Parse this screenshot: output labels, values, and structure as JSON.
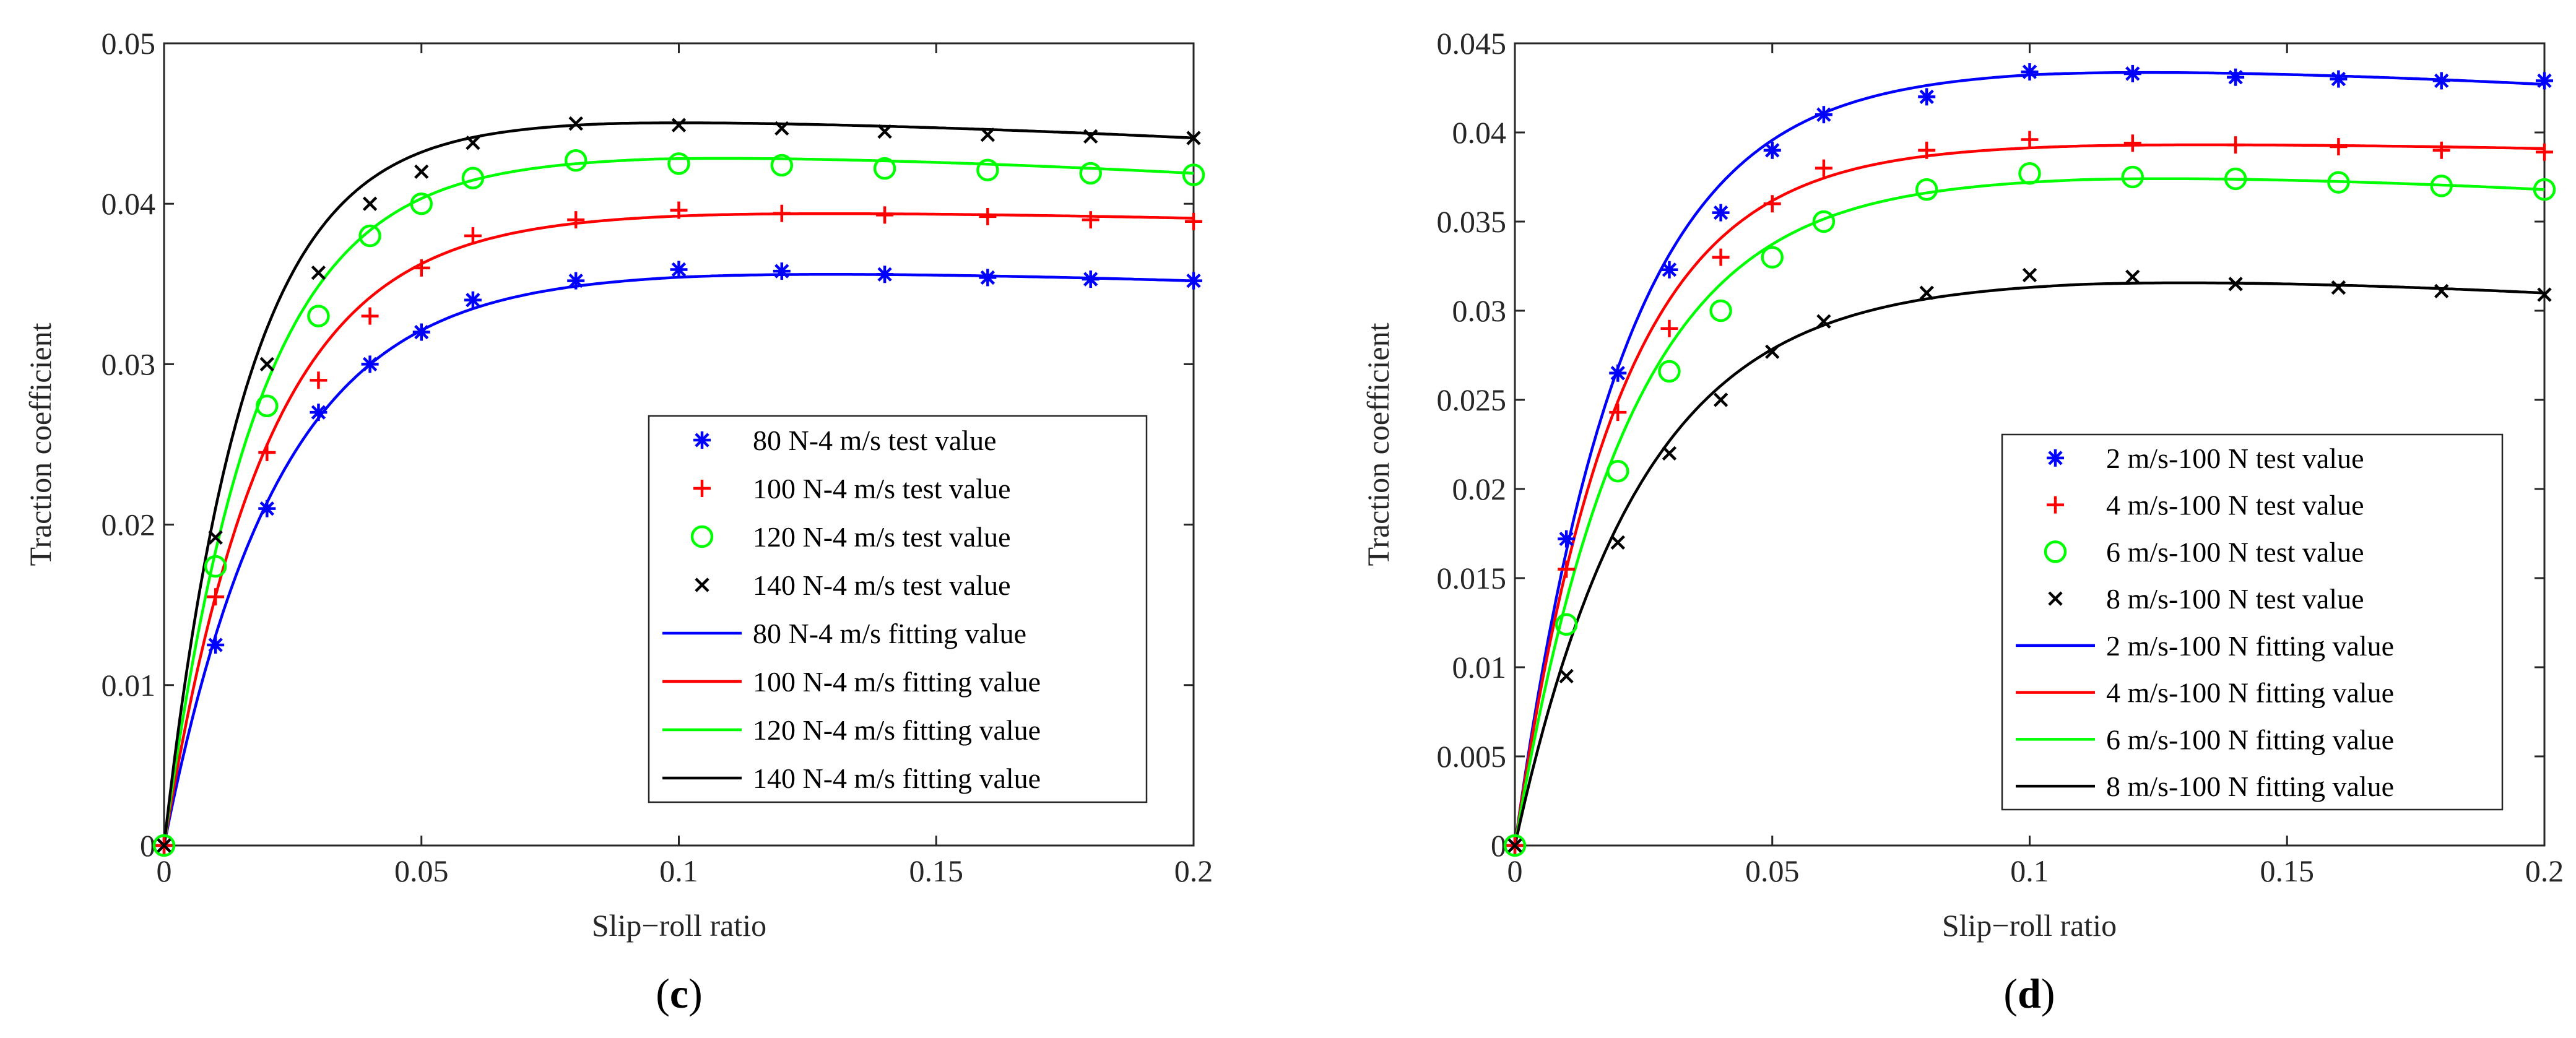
{
  "chart_data": [
    {
      "type": "line",
      "panel_label": "c",
      "xlabel": "Slip−roll ratio",
      "ylabel": "Traction coefficient",
      "xlim": [
        0,
        0.2
      ],
      "ylim": [
        0,
        0.05
      ],
      "xticks": [
        0,
        0.05,
        0.1,
        0.15,
        0.2
      ],
      "xtick_labels": [
        "0",
        "0.05",
        "0.1",
        "0.15",
        "0.2"
      ],
      "yticks": [
        0,
        0.01,
        0.02,
        0.03,
        0.04,
        0.05
      ],
      "ytick_labels": [
        "0",
        "0.01",
        "0.02",
        "0.03",
        "0.04",
        "0.05"
      ],
      "legend_position": "center-right",
      "x_test": [
        0,
        0.01,
        0.02,
        0.03,
        0.04,
        0.05,
        0.06,
        0.08,
        0.1,
        0.12,
        0.14,
        0.16,
        0.18,
        0.2
      ],
      "test_series": [
        {
          "name": "80 N-4 m/s test value",
          "marker": "asterisk",
          "color": "#0000ff",
          "values": [
            0,
            0.0125,
            0.021,
            0.027,
            0.03,
            0.032,
            0.034,
            0.0352,
            0.0359,
            0.0358,
            0.0356,
            0.0354,
            0.0353,
            0.0352
          ]
        },
        {
          "name": "100 N-4 m/s test value",
          "marker": "plus",
          "color": "#ff0000",
          "values": [
            0,
            0.0155,
            0.0245,
            0.029,
            0.033,
            0.036,
            0.038,
            0.039,
            0.0396,
            0.0394,
            0.0393,
            0.0392,
            0.039,
            0.0389
          ]
        },
        {
          "name": "120 N-4 m/s test value",
          "marker": "circle",
          "color": "#00ff00",
          "values": [
            0,
            0.0174,
            0.0274,
            0.033,
            0.038,
            0.04,
            0.0416,
            0.0427,
            0.0425,
            0.0424,
            0.0422,
            0.0421,
            0.0419,
            0.0418
          ]
        },
        {
          "name": "140 N-4 m/s test value",
          "marker": "x",
          "color": "#000000",
          "values": [
            0,
            0.0192,
            0.03,
            0.0357,
            0.04,
            0.042,
            0.0438,
            0.045,
            0.0449,
            0.0447,
            0.0445,
            0.0443,
            0.0442,
            0.0441
          ]
        }
      ],
      "fit_series": [
        {
          "name": "80 N-4 m/s fitting value",
          "color": "#0000ff",
          "peak": 0.0358,
          "end": 0.0352,
          "tau": 0.022,
          "x_peak": 0.1
        },
        {
          "name": "100 N-4 m/s fitting value",
          "color": "#ff0000",
          "peak": 0.0395,
          "end": 0.0391,
          "tau": 0.02,
          "x_peak": 0.105
        },
        {
          "name": "120 N-4 m/s fitting value",
          "color": "#00ff00",
          "peak": 0.043,
          "end": 0.0419,
          "tau": 0.018,
          "x_peak": 0.095
        },
        {
          "name": "140 N-4 m/s fitting value",
          "color": "#000000",
          "peak": 0.0452,
          "end": 0.0441,
          "tau": 0.016,
          "x_peak": 0.085
        }
      ]
    },
    {
      "type": "line",
      "panel_label": "d",
      "xlabel": "Slip−roll ratio",
      "ylabel": "Traction coefficient",
      "xlim": [
        0,
        0.2
      ],
      "ylim": [
        0,
        0.045
      ],
      "xticks": [
        0,
        0.05,
        0.1,
        0.15,
        0.2
      ],
      "xtick_labels": [
        "0",
        "0.05",
        "0.1",
        "0.15",
        "0.2"
      ],
      "yticks": [
        0,
        0.005,
        0.01,
        0.015,
        0.02,
        0.025,
        0.03,
        0.035,
        0.04,
        0.045
      ],
      "ytick_labels": [
        "0",
        "0.005",
        "0.01",
        "0.015",
        "0.02",
        "0.025",
        "0.03",
        "0.035",
        "0.04",
        "0.045"
      ],
      "legend_position": "center-right",
      "x_test": [
        0,
        0.01,
        0.02,
        0.03,
        0.04,
        0.05,
        0.06,
        0.08,
        0.1,
        0.12,
        0.14,
        0.16,
        0.18,
        0.2
      ],
      "test_series": [
        {
          "name": "2 m/s-100 N test value",
          "marker": "asterisk",
          "color": "#0000ff",
          "values": [
            0,
            0.0172,
            0.0265,
            0.0323,
            0.0355,
            0.039,
            0.041,
            0.042,
            0.0434,
            0.0433,
            0.0431,
            0.043,
            0.0429,
            0.0429
          ]
        },
        {
          "name": "4 m/s-100 N test value",
          "marker": "plus",
          "color": "#ff0000",
          "values": [
            0,
            0.0155,
            0.0243,
            0.029,
            0.033,
            0.036,
            0.038,
            0.039,
            0.0396,
            0.0394,
            0.0393,
            0.0392,
            0.039,
            0.0389
          ]
        },
        {
          "name": "6 m/s-100 N test value",
          "marker": "circle",
          "color": "#00ff00",
          "values": [
            0,
            0.0124,
            0.021,
            0.0266,
            0.03,
            0.033,
            0.035,
            0.0368,
            0.0377,
            0.0375,
            0.0374,
            0.0372,
            0.037,
            0.0368
          ]
        },
        {
          "name": "8 m/s-100 N test value",
          "marker": "x",
          "color": "#000000",
          "values": [
            0,
            0.0095,
            0.017,
            0.022,
            0.025,
            0.0277,
            0.0294,
            0.031,
            0.032,
            0.0319,
            0.0315,
            0.0313,
            0.0311,
            0.0309
          ]
        }
      ],
      "fit_series": [
        {
          "name": "2 m/s-100 N fitting value",
          "color": "#0000ff",
          "peak": 0.0436,
          "end": 0.0427,
          "tau": 0.021,
          "x_peak": 0.1
        },
        {
          "name": "4 m/s-100 N fitting value",
          "color": "#ff0000",
          "peak": 0.0394,
          "end": 0.0391,
          "tau": 0.02,
          "x_peak": 0.11
        },
        {
          "name": "6 m/s-100 N fitting value",
          "color": "#00ff00",
          "peak": 0.0376,
          "end": 0.0368,
          "tau": 0.022,
          "x_peak": 0.11
        },
        {
          "name": "8 m/s-100 N fitting value",
          "color": "#000000",
          "peak": 0.0318,
          "end": 0.031,
          "tau": 0.024,
          "x_peak": 0.11
        }
      ]
    }
  ]
}
